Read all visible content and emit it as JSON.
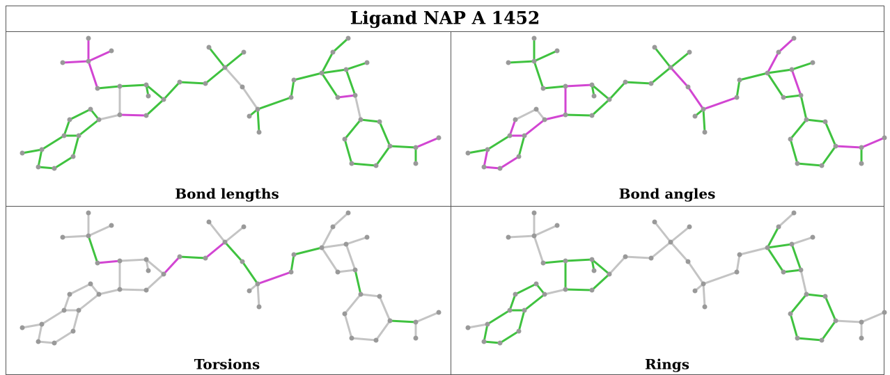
{
  "table": {
    "title": "Ligand NAP A 1452",
    "panels": [
      {
        "caption": "Bond lengths"
      },
      {
        "caption": "Bond angles"
      },
      {
        "caption": "Torsions"
      },
      {
        "caption": "Rings"
      }
    ]
  }
}
